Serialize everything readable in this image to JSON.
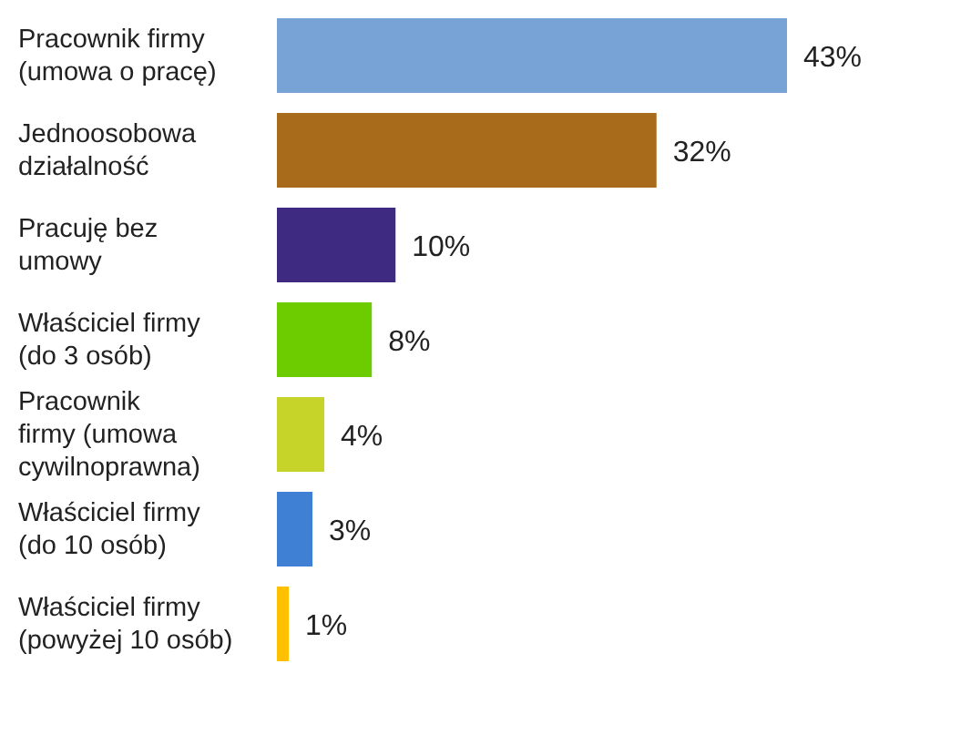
{
  "chart_data": {
    "type": "bar",
    "orientation": "horizontal",
    "categories": [
      "Pracownik firmy\n(umowa o pracę)",
      "Jednoosobowa\ndziałalność",
      "Pracuję bez\numowy",
      "Właściciel firmy\n(do 3 osób)",
      "Pracownik\nfirmy (umowa\ncywilnoprawna)",
      "Właściciel firmy\n(do 10 osób)",
      "Właściciel firmy\n(powyżej 10 osób)"
    ],
    "values": [
      43,
      32,
      10,
      8,
      4,
      3,
      1
    ],
    "colors": [
      "#77a3d6",
      "#a86b1b",
      "#3f2a82",
      "#6ccc00",
      "#c6d42a",
      "#3f80d4",
      "#ffc000"
    ],
    "value_labels": [
      "43%",
      "32%",
      "10%",
      "8%",
      "4%",
      "3%",
      "1%"
    ]
  }
}
